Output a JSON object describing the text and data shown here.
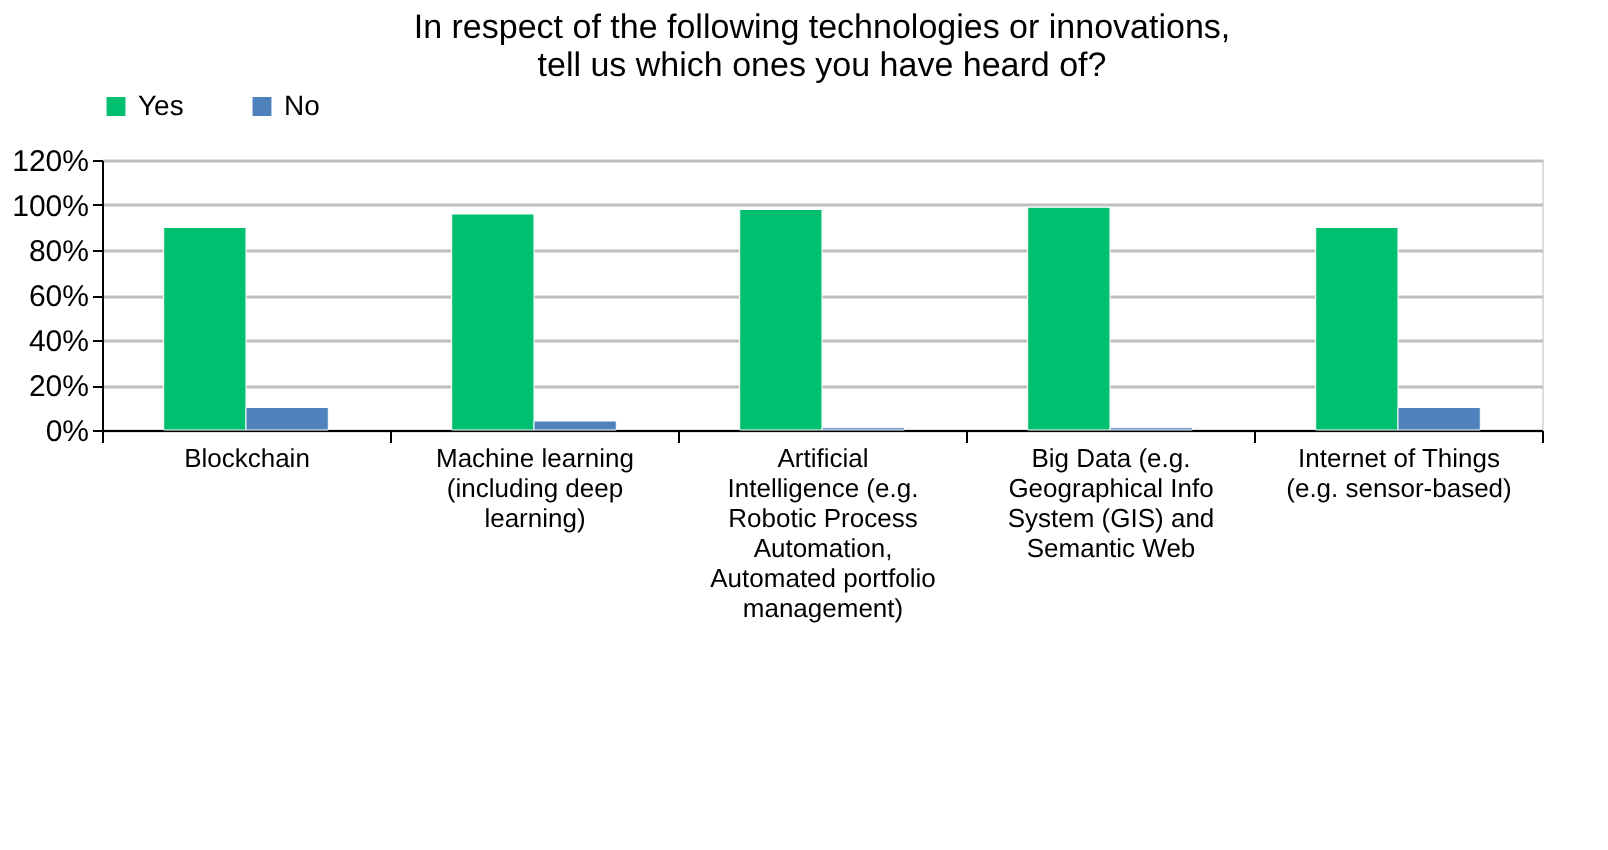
{
  "chart_data": {
    "type": "bar",
    "title": [
      "In respect of the following technologies or innovations,",
      "tell us which ones you have heard of?"
    ],
    "categories": [
      "Blockchain",
      "Machine learning (including deep learning)",
      "Artificial Intelligence (e.g. Robotic Process Automation, Automated portfolio management)",
      "Big Data (e.g. Geographical Info System (GIS) and Semantic Web",
      "Internet of Things (e.g. sensor-based)"
    ],
    "series": [
      {
        "name": "Yes",
        "color": "#00bf6f",
        "values": [
          90,
          96,
          98,
          99,
          90
        ]
      },
      {
        "name": "No",
        "color": "#4f81bd",
        "values": [
          10,
          4,
          1,
          1,
          10
        ]
      }
    ],
    "ylim": [
      0,
      120
    ],
    "yticks": [
      {
        "value": 0,
        "label": "0%"
      },
      {
        "value": 20,
        "label": "20%"
      },
      {
        "value": 40,
        "label": "40%"
      },
      {
        "value": 60,
        "label": "60%"
      },
      {
        "value": 80,
        "label": "80%"
      },
      {
        "value": 100,
        "label": "100%"
      },
      {
        "value": 120,
        "label": "120%"
      }
    ],
    "grid": "y",
    "legend": "top"
  }
}
